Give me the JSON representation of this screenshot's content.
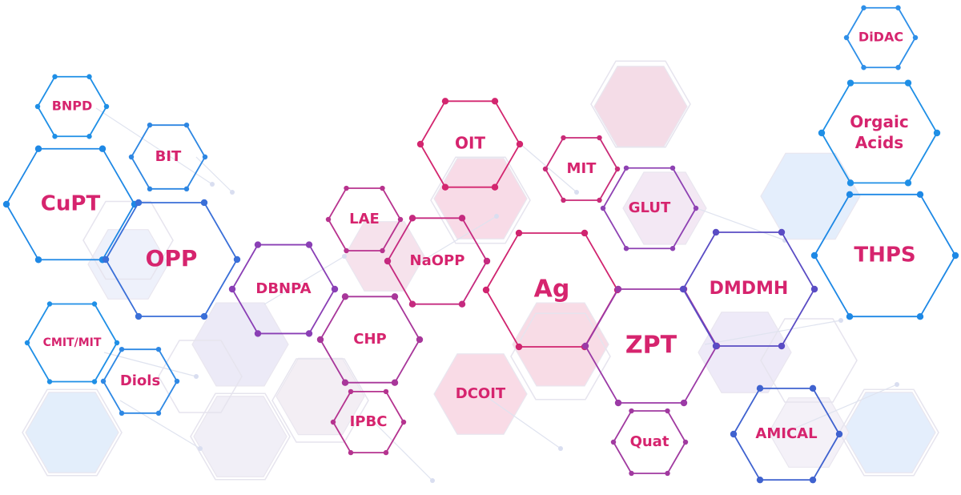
{
  "colors": {
    "label": "#d6246e",
    "blue": "#1e88e5",
    "purple": "#7b3fb8",
    "magenta": "#d8246e"
  },
  "nodes": [
    {
      "id": "didac",
      "label": "DiDAC",
      "color": "#2e8fe8"
    },
    {
      "id": "bnpd",
      "label": "BNPD",
      "color": "#1f8fe6"
    },
    {
      "id": "bit",
      "label": "BIT",
      "color": "#2d86e2"
    },
    {
      "id": "cupt",
      "label": "CuPT",
      "color": "#1e88e5"
    },
    {
      "id": "opp",
      "label": "OPP",
      "color": "#3a6fd8"
    },
    {
      "id": "cmit",
      "label": "CMIT/MIT",
      "color": "#1f8fe6"
    },
    {
      "id": "diols",
      "label": "Diols",
      "color": "#2e88e4"
    },
    {
      "id": "dbnpa",
      "label": "DBNPA",
      "color": "#8a3fb5"
    },
    {
      "id": "lae",
      "label": "LAE",
      "color": "#b8338e"
    },
    {
      "id": "naopp",
      "label": "NaOPP",
      "color": "#c52a7f"
    },
    {
      "id": "oit",
      "label": "OIT",
      "color": "#d3266f"
    },
    {
      "id": "chp",
      "label": "CHP",
      "color": "#a8379a"
    },
    {
      "id": "ipbc",
      "label": "IPBC",
      "color": "#b5338f"
    },
    {
      "id": "dcoit",
      "label": "DCOIT",
      "color": "#f4c9da"
    },
    {
      "id": "mit",
      "label": "MIT",
      "color": "#c92b78"
    },
    {
      "id": "glut",
      "label": "GLUT",
      "color": "#8e42b3"
    },
    {
      "id": "ag",
      "label": "Ag",
      "color": "#d0246f"
    },
    {
      "id": "zpt",
      "label": "ZPT",
      "color": "#9b3aa6"
    },
    {
      "id": "dmdmh",
      "label": "DMDMH",
      "color": "#5a4cc4"
    },
    {
      "id": "quat",
      "label": "Quat",
      "color": "#a13aa0"
    },
    {
      "id": "amical",
      "label": "AMICAL",
      "color": "#3f62cf"
    },
    {
      "id": "orgaic",
      "label": "Orgaic\nAcids",
      "color": "#1f8fe6"
    },
    {
      "id": "thps",
      "label": "THPS",
      "color": "#1e88e5"
    }
  ]
}
